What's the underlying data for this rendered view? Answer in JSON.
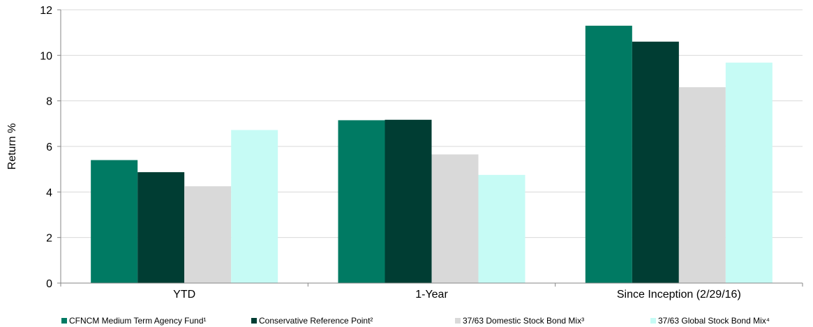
{
  "chart_data": {
    "type": "bar",
    "title": "",
    "xlabel": "",
    "ylabel": "Return %",
    "ylim": [
      0,
      12
    ],
    "yticks": [
      "0",
      "2",
      "4",
      "6",
      "8",
      "10",
      "12"
    ],
    "grid": true,
    "legend_position": "bottom",
    "categories": [
      "YTD",
      "1-Year",
      "Since Inception (2/29/16)"
    ],
    "series": [
      {
        "name": "CFNCM Medium Term Agency Fund¹",
        "color": "#007a63",
        "values": [
          5.4,
          7.15,
          11.3
        ]
      },
      {
        "name": "Conservative Reference Point²",
        "color": "#003d33",
        "values": [
          4.87,
          7.17,
          10.6
        ]
      },
      {
        "name": "37/63 Domestic Stock Bond Mix³",
        "color": "#d9d9d9",
        "values": [
          4.25,
          5.65,
          8.6
        ]
      },
      {
        "name": "37/63 Global Stock Bond Mix⁴",
        "color": "#c6fbf5",
        "values": [
          6.72,
          4.75,
          9.68
        ]
      }
    ]
  }
}
